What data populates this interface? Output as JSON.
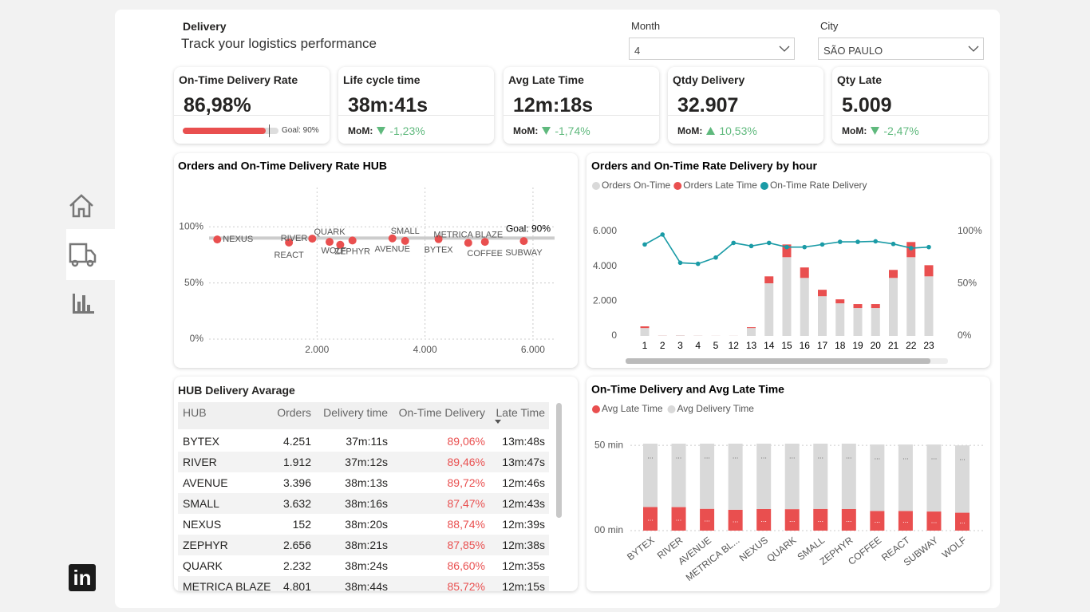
{
  "header": {
    "title": "Delivery",
    "subtitle": "Track your logistics performance"
  },
  "filters": [
    {
      "label": "Month",
      "value": "4"
    },
    {
      "label": "City",
      "value": "SÃO PAULO"
    }
  ],
  "kpis": [
    {
      "title": "On-Time Delivery Rate",
      "value": "86,98%",
      "gauge": {
        "value": 86.98,
        "range": [
          0,
          100
        ],
        "goal": 90,
        "goal_label": "Goal: 90%"
      }
    },
    {
      "title": "Life cycle time",
      "value": "38m:41s",
      "mom_label": "MoM:",
      "change": "-1,23%",
      "trend": "down"
    },
    {
      "title": "Avg Late Time",
      "value": "12m:18s",
      "mom_label": "MoM:",
      "change": "-1,74%",
      "trend": "down"
    },
    {
      "title": "Qtdy Delivery",
      "value": "32.907",
      "mom_label": "MoM:",
      "change": "10,53%",
      "trend": "up"
    },
    {
      "title": "Qty Late",
      "value": "5.009",
      "mom_label": "MoM:",
      "change": "-2,47%",
      "trend": "down"
    }
  ],
  "trend_color": "#5fb97d",
  "chart_data": [
    {
      "type": "scatter",
      "title": "Orders and On-Time Delivery Rate HUB",
      "color": "#e94f4f",
      "labels": [
        "NEXUS",
        "REACT",
        "RIVER",
        "QUARK",
        "WOLF",
        "ZEPHYR",
        "AVENUE",
        "SMALL",
        "BYTEX",
        "METRICA BLAZE",
        "COFFEE",
        "SUBWAY"
      ],
      "x": [
        152,
        1480,
        1912,
        2232,
        2430,
        2656,
        3396,
        3632,
        4251,
        4801,
        5110,
        5830
      ],
      "values": [
        88.74,
        86,
        89.46,
        86.6,
        84,
        87.85,
        89.72,
        87.47,
        89.06,
        85.72,
        86.6,
        87.3
      ],
      "xlim": [
        0,
        6400
      ],
      "ylim": [
        0,
        135
      ],
      "xticks": [
        {
          "value": 2000,
          "label": "2.000"
        },
        {
          "value": 4000,
          "label": "4.000"
        },
        {
          "value": 6000,
          "label": "6.000"
        }
      ],
      "yticks": [
        {
          "value": 0,
          "label": "0%"
        },
        {
          "value": 50,
          "label": "50%"
        },
        {
          "value": 100,
          "label": "100%"
        }
      ],
      "goal": 90,
      "goal_label": "Goal: 90%",
      "grid": true
    },
    {
      "type": "combo",
      "title": "Orders and On-Time Rate Delivery by hour",
      "categories": [
        "1",
        "2",
        "3",
        "4",
        "5",
        "12",
        "13",
        "14",
        "15",
        "16",
        "17",
        "18",
        "19",
        "20",
        "21",
        "22",
        "23"
      ],
      "series": [
        {
          "name": "Orders On-Time",
          "color": "#d9d9d9",
          "values": [
            450,
            15,
            25,
            12,
            8,
            8,
            450,
            3020,
            4520,
            3330,
            2280,
            1870,
            1600,
            1600,
            3330,
            4520,
            3420
          ]
        },
        {
          "name": "Orders Late Time",
          "color": "#e94f4f",
          "values": [
            100,
            5,
            5,
            3,
            2,
            2,
            50,
            400,
            730,
            600,
            370,
            230,
            230,
            230,
            460,
            870,
            640
          ]
        },
        {
          "name": "On-Time Rate Delivery",
          "color": "#1a9ba6",
          "axis": "y2",
          "values": [
            87.5,
            97,
            70,
            69,
            75,
            89,
            86,
            89,
            85,
            85,
            87.5,
            90,
            90,
            90.5,
            88,
            84,
            85
          ]
        }
      ],
      "ylim": [
        0,
        6000
      ],
      "yticks": [
        0,
        {
          "value": 2000,
          "label": "2.000"
        },
        {
          "value": 4000,
          "label": "4.000"
        },
        {
          "value": 6000,
          "label": "6.000"
        }
      ],
      "y2lim": [
        0,
        100
      ],
      "y2ticks": [
        {
          "value": 0,
          "label": "0%"
        },
        {
          "value": 50,
          "label": "50%"
        },
        {
          "value": 100,
          "label": "100%"
        }
      ]
    },
    {
      "type": "stacked_bar",
      "title": "On-Time Delivery and Avg Late Time",
      "categories": [
        "BYTEX",
        "RIVER",
        "AVENUE",
        "METRICA BL...",
        "NEXUS",
        "QUARK",
        "SMALL",
        "ZEPHYR",
        "COFFEE",
        "REACT",
        "SUBWAY",
        "WOLF"
      ],
      "series": [
        {
          "name": "Avg Late Time",
          "color": "#e94f4f",
          "values": [
            13.8,
            13.78,
            12.77,
            12.25,
            12.65,
            12.58,
            12.72,
            12.63,
            11.5,
            11.5,
            11.2,
            10.5
          ],
          "value_labels": [
            "...",
            "...",
            "...",
            "...",
            "...",
            "...",
            "...",
            "...",
            "...",
            "...",
            "...",
            "..."
          ]
        },
        {
          "name": "Avg Delivery Time",
          "color": "#d9d9d9",
          "values": [
            37.18,
            37.2,
            38.22,
            38.73,
            38.33,
            38.4,
            38.27,
            38.35,
            39,
            39,
            39.3,
            39.5
          ],
          "value_labels": [
            "...",
            "...",
            "...",
            "...",
            "...",
            "...",
            "...",
            "...",
            "...",
            "...",
            "...",
            "..."
          ]
        }
      ],
      "ylim": [
        0,
        51
      ],
      "yticks": [
        {
          "value": 0,
          "label": "00 min"
        },
        {
          "value": 50,
          "label": "50 min"
        }
      ],
      "grid": true
    }
  ],
  "table": {
    "title": "HUB Delivery Avarage",
    "columns": [
      "HUB",
      "Orders",
      "Delivery time",
      "On-Time Delivery",
      "Late Time"
    ],
    "rows": [
      [
        "BYTEX",
        "4.251",
        "37m:11s",
        "89,06%",
        "13m:48s"
      ],
      [
        "RIVER",
        "1.912",
        "37m:12s",
        "89,46%",
        "13m:47s"
      ],
      [
        "AVENUE",
        "3.396",
        "38m:13s",
        "89,72%",
        "12m:46s"
      ],
      [
        "SMALL",
        "3.632",
        "38m:16s",
        "87,47%",
        "12m:43s"
      ],
      [
        "NEXUS",
        "152",
        "38m:20s",
        "88,74%",
        "12m:39s"
      ],
      [
        "ZEPHYR",
        "2.656",
        "38m:21s",
        "87,85%",
        "12m:38s"
      ],
      [
        "QUARK",
        "2.232",
        "38m:24s",
        "86,60%",
        "12m:35s"
      ],
      [
        "METRICA BLAZE",
        "4.801",
        "38m:44s",
        "85,72%",
        "12m:15s"
      ]
    ]
  },
  "sidebar": {
    "logo": "in"
  }
}
